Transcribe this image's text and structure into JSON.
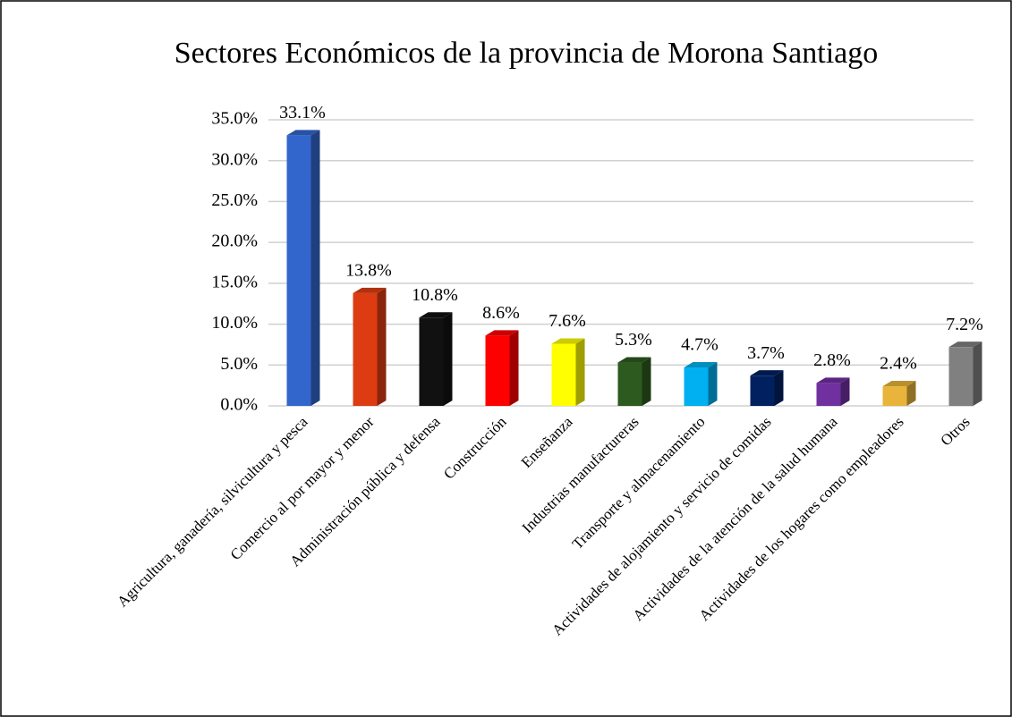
{
  "chart_data": {
    "type": "bar3d",
    "title": "Sectores Económicos de la provincia de Morona Santiago",
    "categories": [
      "Agricultura, ganadería, silvicultura y pesca",
      "Comercio al por mayor y menor",
      "Administración pública y defensa",
      "Construcción",
      "Enseñanza",
      "Industrias manufactureras",
      "Transporte y almacenamiento",
      "Actividades de alojamiento y servicio de comidas",
      "Actividades de la atención de la salud humana",
      "Actividades de los hogares como empleadores",
      "Otros"
    ],
    "values": [
      33.1,
      13.8,
      10.8,
      8.6,
      7.6,
      5.3,
      4.7,
      3.7,
      2.8,
      2.4,
      7.2
    ],
    "value_labels": [
      "33.1%",
      "13.8%",
      "10.8%",
      "8.6%",
      "7.6%",
      "5.3%",
      "4.7%",
      "3.7%",
      "2.8%",
      "2.4%",
      "7.2%"
    ],
    "colors": [
      "#3366cc",
      "#dd3c12",
      "#111111",
      "#ff0000",
      "#ffff00",
      "#2d5a1f",
      "#00b0f0",
      "#002060",
      "#7030a0",
      "#e8b43a",
      "#808080"
    ],
    "ylim": [
      0,
      35
    ],
    "yticks": [
      {
        "value": 0,
        "label": "0.0%"
      },
      {
        "value": 5,
        "label": "5.0%"
      },
      {
        "value": 10,
        "label": "10.0%"
      },
      {
        "value": 15,
        "label": "15.0%"
      },
      {
        "value": 20,
        "label": "20.0%"
      },
      {
        "value": 25,
        "label": "25.0%"
      },
      {
        "value": 30,
        "label": "30.0%"
      },
      {
        "value": 35,
        "label": "35.0%"
      }
    ],
    "grid": true
  }
}
